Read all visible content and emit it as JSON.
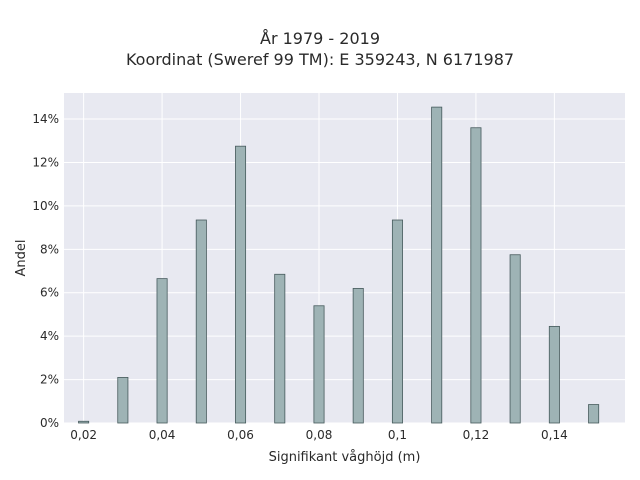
{
  "chart_data": {
    "type": "bar",
    "title_lines": [
      "År 1979 - 2019",
      "Koordinat (Sweref 99 TM): E 359243, N 6171987"
    ],
    "xlabel": "Signifikant våghöjd (m)",
    "ylabel": "Andel",
    "xlim": [
      0.015,
      0.158
    ],
    "ylim": [
      0,
      15.2
    ],
    "x_ticks": [
      0.02,
      0.04,
      0.06,
      0.08,
      0.1,
      0.12,
      0.14
    ],
    "x_tick_labels": [
      "0,02",
      "0,04",
      "0,06",
      "0,08",
      "0,1",
      "0,12",
      "0,14"
    ],
    "y_ticks": [
      0,
      2,
      4,
      6,
      8,
      10,
      12,
      14
    ],
    "y_tick_labels": [
      "0%",
      "2%",
      "4%",
      "6%",
      "8%",
      "10%",
      "12%",
      "14%"
    ],
    "y_unit": "%",
    "bar_width": 0.0026,
    "grid": true,
    "colors": {
      "plot_bg": "#e8e9f1",
      "grid": "#ffffff",
      "bar_fill": "#9eb3b5",
      "bar_stroke": "#465a5c"
    },
    "x": [
      0.02,
      0.03,
      0.04,
      0.05,
      0.06,
      0.07,
      0.08,
      0.09,
      0.1,
      0.11,
      0.12,
      0.13,
      0.14,
      0.15
    ],
    "values": [
      0.08,
      2.1,
      6.65,
      9.35,
      12.75,
      6.85,
      5.4,
      6.2,
      9.35,
      14.55,
      13.6,
      7.75,
      4.45,
      0.85
    ]
  }
}
